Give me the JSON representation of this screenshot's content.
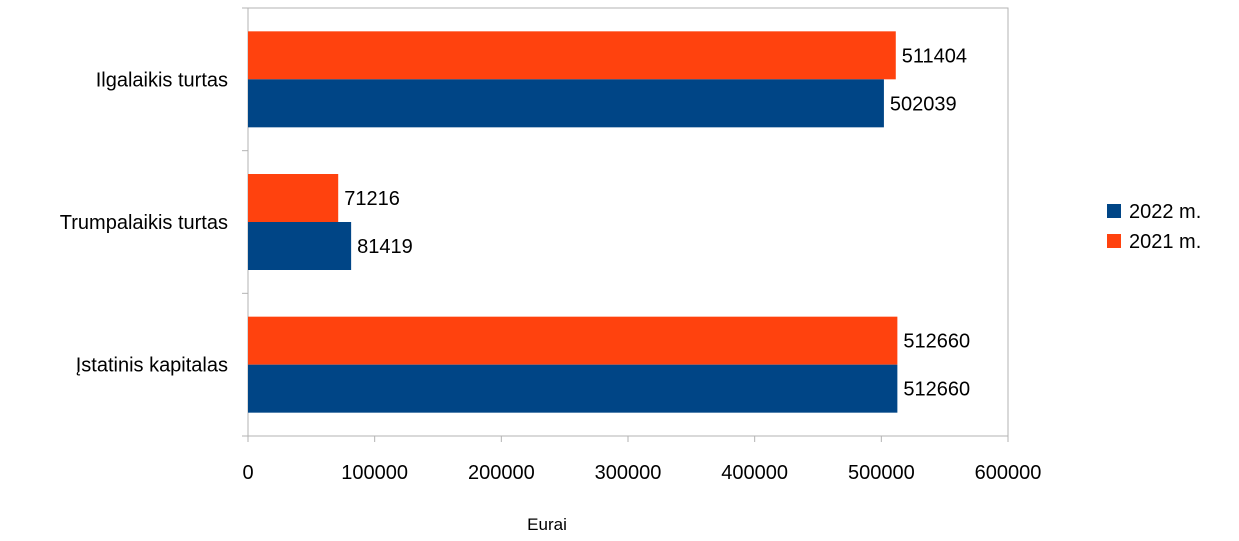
{
  "chart_data": {
    "type": "bar",
    "orientation": "horizontal",
    "categories": [
      "Ilgalaikis turtas",
      "Trumpalaikis turtas",
      "Įstatinis kapitalas"
    ],
    "series": [
      {
        "name": "2021 m.",
        "color": "#ff420e",
        "values": [
          511404,
          71216,
          512660
        ]
      },
      {
        "name": "2022 m.",
        "color": "#004586",
        "values": [
          502039,
          81419,
          512660
        ]
      }
    ],
    "legend_order": [
      1,
      0
    ],
    "xlabel": "Eurai",
    "xlim": [
      0,
      600000
    ],
    "x_ticks": [
      0,
      100000,
      200000,
      300000,
      400000,
      500000,
      600000
    ],
    "grid": false,
    "legend_position": "right",
    "data_labels": true
  }
}
